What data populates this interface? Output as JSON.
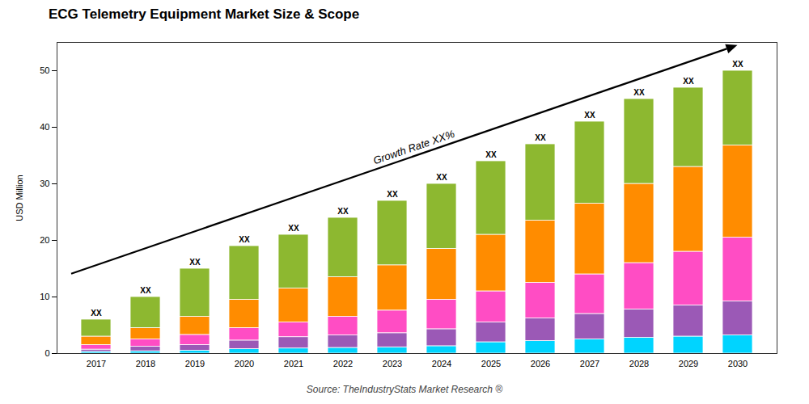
{
  "chart_data": {
    "type": "bar",
    "title": "ECG Telemetry Equipment Market Size & Scope",
    "ylabel": "USD Million",
    "caption": "Source: TheIndustryStats Market Research ®",
    "annotations": [
      {
        "text": "Growth Rate XX%"
      }
    ],
    "categories": [
      "2017",
      "2018",
      "2019",
      "2020",
      "2021",
      "2022",
      "2023",
      "2024",
      "2025",
      "2026",
      "2027",
      "2028",
      "2029",
      "2030"
    ],
    "series": [
      {
        "color": "#00D4FF",
        "values": [
          0.3,
          0.4,
          0.5,
          0.8,
          0.9,
          1.0,
          1.1,
          1.3,
          2.0,
          2.2,
          2.5,
          2.8,
          3.0,
          3.2
        ]
      },
      {
        "color": "#9B59B6",
        "values": [
          0.4,
          0.8,
          1.0,
          1.5,
          2.0,
          2.2,
          2.5,
          3.0,
          3.5,
          4.0,
          4.5,
          5.0,
          5.5,
          6.0
        ]
      },
      {
        "color": "#FF4DC4",
        "values": [
          0.8,
          1.3,
          1.8,
          2.2,
          2.6,
          3.3,
          4.0,
          5.2,
          5.5,
          6.3,
          7.0,
          8.2,
          9.5,
          11.3
        ]
      },
      {
        "color": "#FF8C00",
        "values": [
          1.5,
          2.0,
          3.2,
          5.0,
          6.0,
          7.0,
          8.0,
          9.0,
          10.0,
          11.0,
          12.5,
          14.0,
          15.0,
          16.3
        ]
      },
      {
        "color": "#8DB830",
        "values": [
          3.0,
          5.5,
          8.5,
          9.5,
          9.5,
          10.5,
          11.4,
          11.5,
          13.0,
          13.5,
          14.5,
          15.0,
          14.0,
          13.2
        ]
      }
    ],
    "totals": [
      6,
      10,
      15,
      19,
      21,
      24,
      27,
      30,
      34,
      37,
      41,
      45,
      47,
      50
    ],
    "total_labels": [
      "XX",
      "XX",
      "XX",
      "XX",
      "XX",
      "XX",
      "XX",
      "XX",
      "XX",
      "XX",
      "XX",
      "XX",
      "XX",
      "XX"
    ],
    "stacked": true,
    "ylim": [
      0,
      55
    ],
    "yticks": [
      0,
      10,
      20,
      30,
      40,
      50
    ],
    "grid": false
  }
}
